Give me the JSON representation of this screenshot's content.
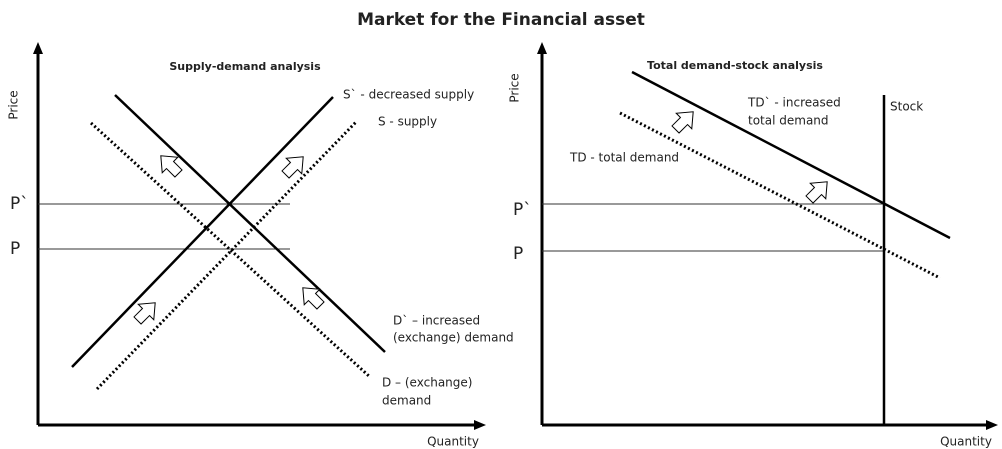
{
  "title": "Market for the Financial asset",
  "left": {
    "subtitle": "Supply-demand analysis",
    "y_label": "Price",
    "x_label": "Quantity",
    "p_high": "P`",
    "p_low": "P",
    "s_prime": "S` - decreased supply",
    "s": "S - supply",
    "d_prime": [
      "D` – increased",
      "(exchange) demand"
    ],
    "d": [
      "D – (exchange)",
      "demand"
    ]
  },
  "right": {
    "subtitle": "Total demand-stock analysis",
    "y_label": "Price",
    "x_label": "Quantity",
    "p_high": "P`",
    "p_low": "P",
    "stock": "Stock",
    "td_prime": [
      "TD` - increased",
      "total demand"
    ],
    "td": "TD - total demand"
  }
}
